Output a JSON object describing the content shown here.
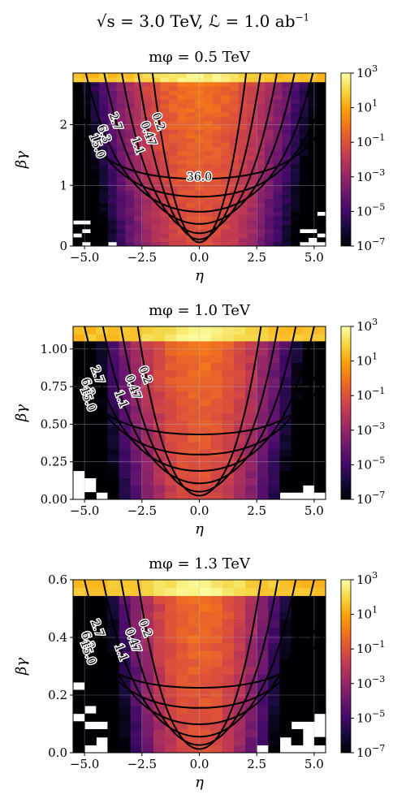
{
  "figure": {
    "suptitle_prefix": "√s = 3.0 TeV, ℒ = 1.0 ab",
    "suptitle_exp": "−1"
  },
  "colormap": {
    "name": "inferno",
    "log_range": [
      -7,
      3
    ]
  },
  "chart_data": [
    {
      "type": "heatmap",
      "title": "mφ = 0.5 TeV",
      "mass": 0.5,
      "xlabel": "η",
      "ylabel": "βγ",
      "xlim": [
        -5.5,
        5.5
      ],
      "ylim": [
        0,
        2.85
      ],
      "xticks": [
        -5.0,
        -2.5,
        0.0,
        2.5,
        5.0
      ],
      "xtick_labels": [
        "−5.0",
        "−2.5",
        "0.0",
        "2.5",
        "5.0"
      ],
      "yticks": [
        0,
        1,
        2
      ],
      "ytick_labels": [
        "0",
        "1",
        "2"
      ],
      "colorbar_ticks": [
        "10^3",
        "10^1",
        "10^-1",
        "10^-3",
        "10^-5",
        "10^-7"
      ],
      "contour_levels": [
        {
          "label": "0.2",
          "value": 0.2
        },
        {
          "label": "0.47",
          "value": 0.47
        },
        {
          "label": "1.1",
          "value": 1.1
        },
        {
          "label": "2.7",
          "value": 2.7
        },
        {
          "label": "6.3",
          "value": 6.3
        },
        {
          "label": "15.0",
          "value": 15.0
        },
        {
          "label": "36.0",
          "value": 36.0
        }
      ],
      "grid": true
    },
    {
      "type": "heatmap",
      "title": "mφ = 1.0 TeV",
      "mass": 1.0,
      "xlabel": "η",
      "ylabel": "βγ",
      "xlim": [
        -5.5,
        5.5
      ],
      "ylim": [
        0,
        1.15
      ],
      "xticks": [
        -5.0,
        -2.5,
        0.0,
        2.5,
        5.0
      ],
      "xtick_labels": [
        "−5.0",
        "−2.5",
        "0.0",
        "2.5",
        "5.0"
      ],
      "yticks": [
        0,
        0.25,
        0.5,
        0.75,
        1.0
      ],
      "ytick_labels": [
        "0.00",
        "0.25",
        "0.50",
        "0.75",
        "1.00"
      ],
      "colorbar_ticks": [
        "10^3",
        "10^1",
        "10^-1",
        "10^-3",
        "10^-5",
        "10^-7"
      ],
      "contour_levels": [
        {
          "label": "0.2",
          "value": 0.2
        },
        {
          "label": "0.47",
          "value": 0.47
        },
        {
          "label": "1.1",
          "value": 1.1
        },
        {
          "label": "2.7",
          "value": 2.7
        },
        {
          "label": "6.3",
          "value": 6.3
        },
        {
          "label": "15.0",
          "value": 15.0
        }
      ],
      "grid": true
    },
    {
      "type": "heatmap",
      "title": "mφ = 1.3 TeV",
      "mass": 1.3,
      "xlabel": "η",
      "ylabel": "βγ",
      "xlim": [
        -5.5,
        5.5
      ],
      "ylim": [
        0,
        0.6
      ],
      "xticks": [
        -5.0,
        -2.5,
        0.0,
        2.5,
        5.0
      ],
      "xtick_labels": [
        "−5.0",
        "−2.5",
        "0.0",
        "2.5",
        "5.0"
      ],
      "yticks": [
        0,
        0.2,
        0.4,
        0.6
      ],
      "ytick_labels": [
        "0.0",
        "0.2",
        "0.4",
        "0.6"
      ],
      "colorbar_ticks": [
        "10^3",
        "10^1",
        "10^-1",
        "10^-3",
        "10^-5",
        "10^-7"
      ],
      "contour_levels": [
        {
          "label": "0.2",
          "value": 0.2
        },
        {
          "label": "0.47",
          "value": 0.47
        },
        {
          "label": "1.1",
          "value": 1.1
        },
        {
          "label": "2.7",
          "value": 2.7
        },
        {
          "label": "6.3",
          "value": 6.3
        },
        {
          "label": "15.0",
          "value": 15.0
        }
      ],
      "grid": true
    }
  ]
}
